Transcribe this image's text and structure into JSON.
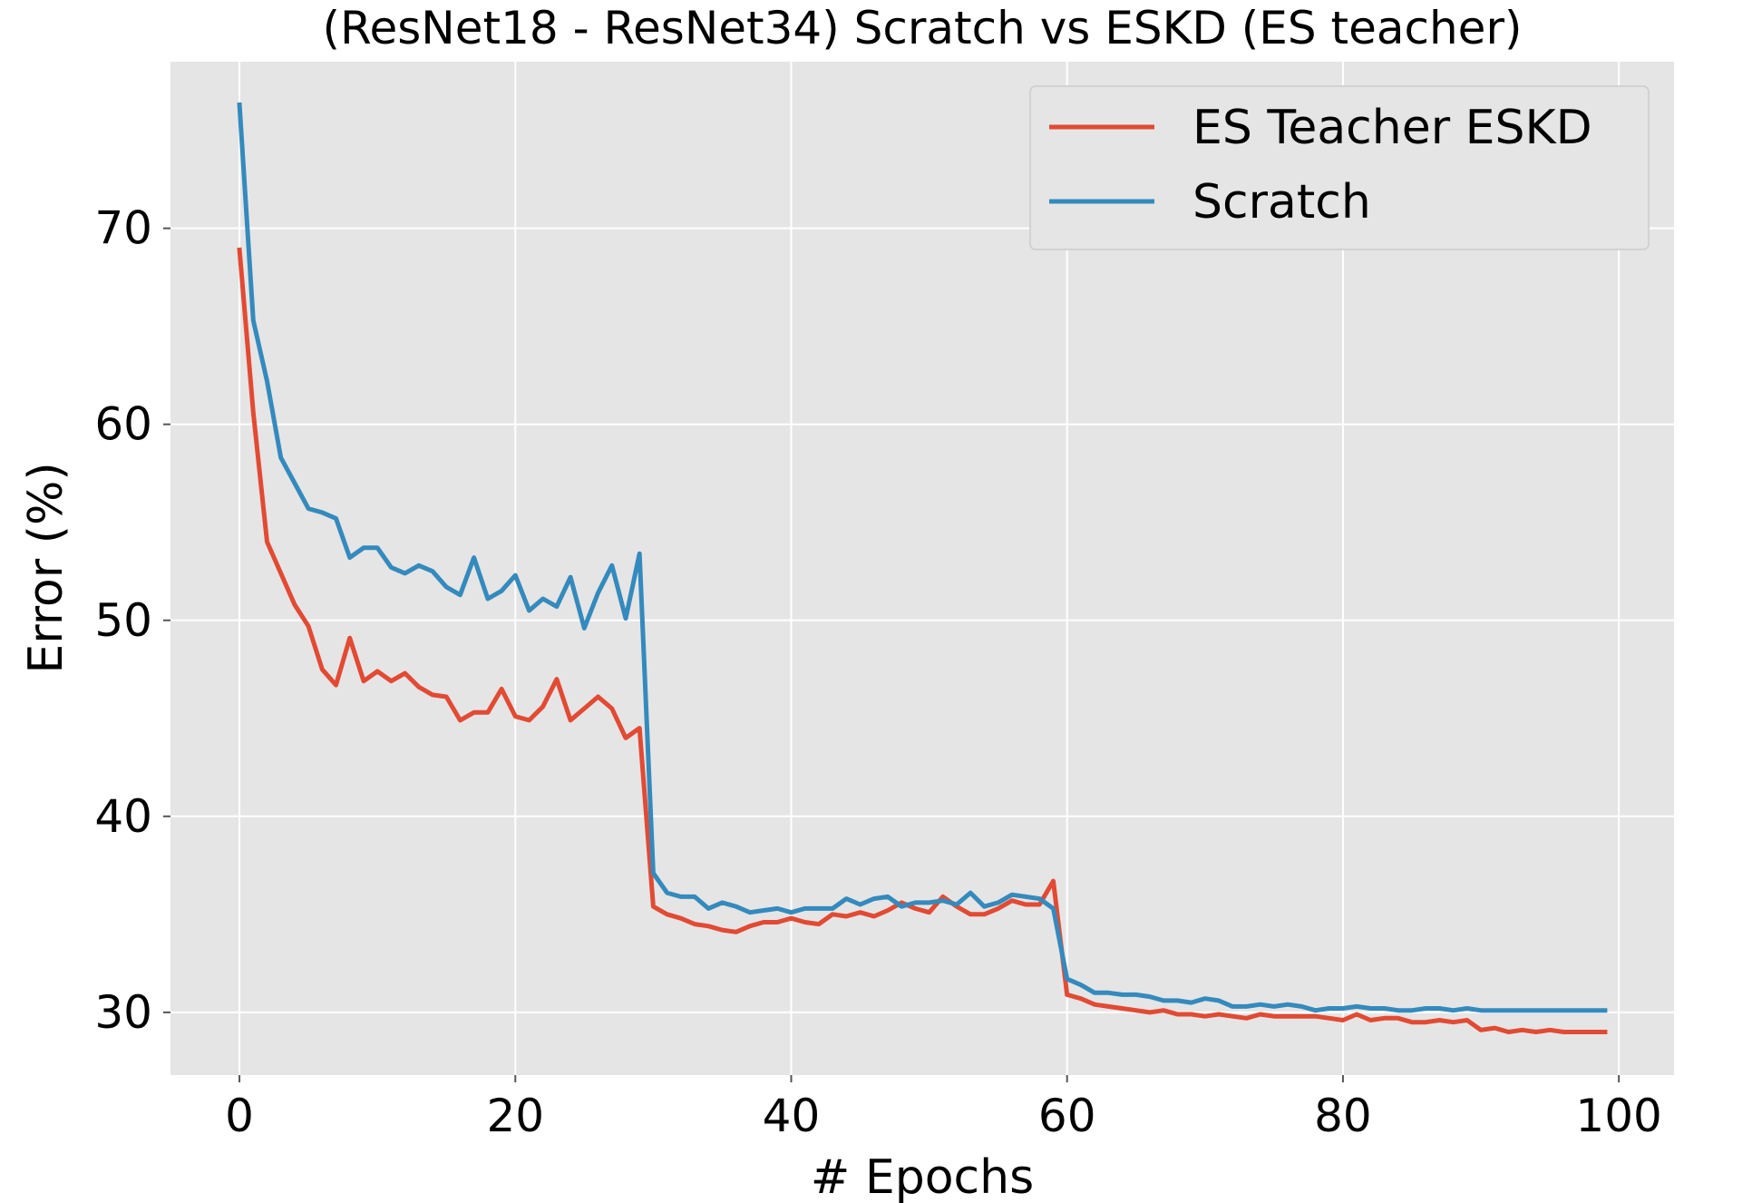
{
  "chart_data": {
    "type": "line",
    "title": "(ResNet18 - ResNet34) Scratch vs ESKD (ES teacher)",
    "xlabel": "# Epochs",
    "ylabel": "Error (%)",
    "xlim": [
      -5,
      104
    ],
    "ylim": [
      26.8,
      78.5
    ],
    "xticks": [
      0,
      20,
      40,
      60,
      80,
      100
    ],
    "yticks": [
      30,
      40,
      50,
      60,
      70
    ],
    "grid": true,
    "background": "#e5e5e5",
    "legend": {
      "placement": "top-right"
    },
    "series": [
      {
        "name": "ES Teacher ESKD",
        "color": "#e24a33",
        "x_start": 0,
        "values": [
          68.9,
          60.6,
          54.0,
          52.4,
          50.8,
          49.7,
          47.5,
          46.7,
          49.1,
          46.9,
          47.4,
          46.9,
          47.3,
          46.6,
          46.2,
          46.1,
          44.9,
          45.3,
          45.3,
          46.5,
          45.1,
          44.9,
          45.6,
          47.0,
          44.9,
          45.5,
          46.1,
          45.5,
          44.0,
          44.5,
          35.4,
          35.0,
          34.8,
          34.5,
          34.4,
          34.2,
          34.1,
          34.4,
          34.6,
          34.6,
          34.8,
          34.6,
          34.5,
          35.0,
          34.9,
          35.1,
          34.9,
          35.2,
          35.6,
          35.3,
          35.1,
          35.9,
          35.4,
          35.0,
          35.0,
          35.3,
          35.7,
          35.5,
          35.5,
          36.7,
          30.9,
          30.7,
          30.4,
          30.3,
          30.2,
          30.1,
          30.0,
          30.1,
          29.9,
          29.9,
          29.8,
          29.9,
          29.8,
          29.7,
          29.9,
          29.8,
          29.8,
          29.8,
          29.8,
          29.7,
          29.6,
          29.9,
          29.6,
          29.7,
          29.7,
          29.5,
          29.5,
          29.6,
          29.5,
          29.6,
          29.1,
          29.2,
          29.0,
          29.1,
          29.0,
          29.1,
          29.0,
          29.0,
          29.0,
          29.0
        ]
      },
      {
        "name": "Scratch",
        "color": "#348abd",
        "x_start": 0,
        "values": [
          76.3,
          65.3,
          62.2,
          58.3,
          57.0,
          55.7,
          55.5,
          55.2,
          53.2,
          53.7,
          53.7,
          52.7,
          52.4,
          52.8,
          52.5,
          51.7,
          51.3,
          53.2,
          51.1,
          51.5,
          52.3,
          50.5,
          51.1,
          50.7,
          52.2,
          49.6,
          51.4,
          52.8,
          50.1,
          53.4,
          37.1,
          36.1,
          35.9,
          35.9,
          35.3,
          35.6,
          35.4,
          35.1,
          35.2,
          35.3,
          35.1,
          35.3,
          35.3,
          35.3,
          35.8,
          35.5,
          35.8,
          35.9,
          35.4,
          35.6,
          35.6,
          35.7,
          35.5,
          36.1,
          35.4,
          35.6,
          36.0,
          35.9,
          35.8,
          35.3,
          31.7,
          31.4,
          31.0,
          31.0,
          30.9,
          30.9,
          30.8,
          30.6,
          30.6,
          30.5,
          30.7,
          30.6,
          30.3,
          30.3,
          30.4,
          30.3,
          30.4,
          30.3,
          30.1,
          30.2,
          30.2,
          30.3,
          30.2,
          30.2,
          30.1,
          30.1,
          30.2,
          30.2,
          30.1,
          30.2,
          30.1,
          30.1,
          30.1,
          30.1,
          30.1,
          30.1,
          30.1,
          30.1,
          30.1,
          30.1
        ]
      }
    ]
  }
}
